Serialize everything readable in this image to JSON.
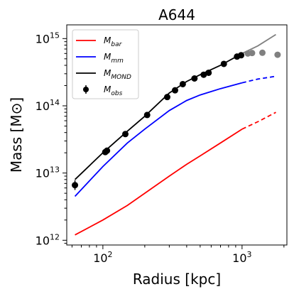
{
  "chart_data": {
    "type": "line",
    "title": "A644",
    "xlabel": "Radius [kpc]",
    "ylabel": "Mass [M⊙]",
    "xscale": "log",
    "yscale": "log",
    "xlim": [
      55,
      2100
    ],
    "ylim": [
      850000000000.0,
      1600000000000000.0
    ],
    "xticks": [
      {
        "value": 100,
        "base": "10",
        "exp": "2"
      },
      {
        "value": 1000,
        "base": "10",
        "exp": "3"
      }
    ],
    "yticks": [
      {
        "value": 1000000000000.0,
        "base": "10",
        "exp": "12"
      },
      {
        "value": 10000000000000.0,
        "base": "10",
        "exp": "13"
      },
      {
        "value": 100000000000000.0,
        "base": "10",
        "exp": "14"
      },
      {
        "value": 1000000000000000.0,
        "base": "10",
        "exp": "15"
      }
    ],
    "grid": false,
    "legend_position": "top-left",
    "series": [
      {
        "name": "M_bar",
        "label_main": "M",
        "label_sub": "bar",
        "color": "#ff0000",
        "style": "solid",
        "x": [
          63,
          100,
          150,
          200,
          300,
          400,
          500,
          700,
          1000
        ],
        "y": [
          1200000000000.0,
          2000000000000.0,
          3300000000000.0,
          5000000000000.0,
          9000000000000.0,
          13500000000000.0,
          18000000000000.0,
          28000000000000.0,
          45000000000000.0
        ]
      },
      {
        "name": "M_bar (extrapolated)",
        "color": "#ff0000",
        "style": "dashed",
        "x": [
          1000,
          1300,
          1750
        ],
        "y": [
          45000000000000.0,
          58000000000000.0,
          80000000000000.0
        ]
      },
      {
        "name": "M_mm",
        "label_main": "M",
        "label_sub": "mm",
        "color": "#0000ff",
        "style": "solid",
        "x": [
          63,
          100,
          150,
          200,
          300,
          400,
          500,
          700,
          1000
        ],
        "y": [
          4500000000000.0,
          12500000000000.0,
          28000000000000.0,
          45000000000000.0,
          85000000000000.0,
          120000000000000.0,
          145000000000000.0,
          180000000000000.0,
          220000000000000.0
        ]
      },
      {
        "name": "M_mm (extrapolated)",
        "color": "#0000ff",
        "style": "dashed",
        "x": [
          1000,
          1300,
          1750
        ],
        "y": [
          220000000000000.0,
          250000000000000.0,
          275000000000000.0
        ]
      },
      {
        "name": "M_MOND",
        "label_main": "M",
        "label_sub": "MOND",
        "color": "#000000",
        "style": "solid",
        "x": [
          63,
          100,
          150,
          200,
          300,
          400,
          500,
          700,
          1000
        ],
        "y": [
          8000000000000.0,
          20000000000000.0,
          42000000000000.0,
          70000000000000.0,
          155000000000000.0,
          230000000000000.0,
          290000000000000.0,
          400000000000000.0,
          600000000000000.0
        ]
      },
      {
        "name": "M_MOND (extrapolated)",
        "color": "#808080",
        "style": "solid",
        "x": [
          1000,
          1300,
          1750
        ],
        "y": [
          600000000000000.0,
          780000000000000.0,
          1150000000000000.0
        ]
      }
    ],
    "observations": {
      "name": "M_obs",
      "label_main": "M",
      "label_sub": "obs",
      "color": "#000000",
      "points": [
        {
          "x": 63,
          "y": 6600000000000.0,
          "err_lo": 5600000000000.0,
          "err_hi": 7800000000000.0
        },
        {
          "x": 104,
          "y": 20500000000000.0
        },
        {
          "x": 107,
          "y": 21500000000000.0
        },
        {
          "x": 145,
          "y": 38000000000000.0
        },
        {
          "x": 208,
          "y": 73000000000000.0
        },
        {
          "x": 290,
          "y": 135000000000000.0
        },
        {
          "x": 330,
          "y": 170000000000000.0
        },
        {
          "x": 375,
          "y": 210000000000000.0
        },
        {
          "x": 455,
          "y": 255000000000000.0
        },
        {
          "x": 530,
          "y": 290000000000000.0
        },
        {
          "x": 575,
          "y": 310000000000000.0
        },
        {
          "x": 740,
          "y": 420000000000000.0
        },
        {
          "x": 920,
          "y": 540000000000000.0
        },
        {
          "x": 985,
          "y": 565000000000000.0
        }
      ]
    },
    "observations_outer": {
      "color": "#808080",
      "points": [
        {
          "x": 1100,
          "y": 600000000000000.0
        },
        {
          "x": 1180,
          "y": 610000000000000.0
        },
        {
          "x": 1400,
          "y": 615000000000000.0
        },
        {
          "x": 1800,
          "y": 575000000000000.0
        }
      ]
    }
  }
}
